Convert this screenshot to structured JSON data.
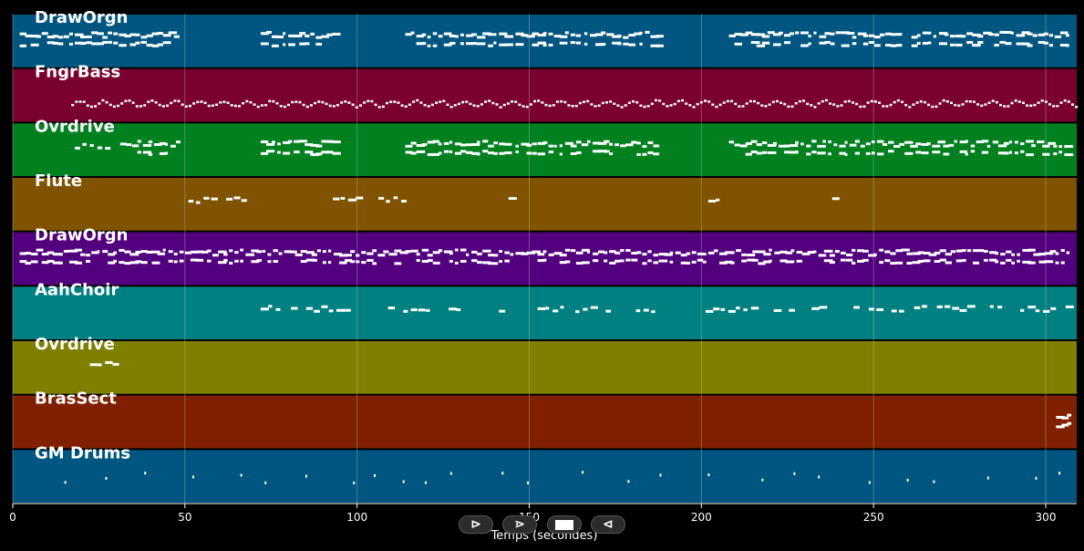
{
  "chart_data": {
    "type": "piano-roll",
    "xlabel": "Temps (secondes)",
    "xlim": [
      0,
      309
    ],
    "x_ticks": [
      0,
      50,
      100,
      150,
      200,
      250,
      300
    ],
    "grid": true,
    "tracks": [
      {
        "name": "DrawOrgn",
        "color": "#005680",
        "segments": [
          [
            2,
            47,
            "dense"
          ],
          [
            72,
            93,
            "dense"
          ],
          [
            114,
            143,
            "dense"
          ],
          [
            146,
            164,
            "dense"
          ],
          [
            166,
            187,
            "dense"
          ],
          [
            208,
            230,
            "dense"
          ],
          [
            231,
            258,
            "dense"
          ],
          [
            261,
            307,
            "dense"
          ]
        ]
      },
      {
        "name": "FngrBass",
        "color": "#7a0030",
        "segments": [
          [
            17,
            309,
            "line"
          ]
        ]
      },
      {
        "name": "Ovrdrive",
        "color": "#00801f",
        "segments": [
          [
            18,
            33,
            "sparse"
          ],
          [
            33,
            49,
            "dense"
          ],
          [
            72,
            93,
            "dense"
          ],
          [
            114,
            143,
            "dense"
          ],
          [
            146,
            187,
            "dense"
          ],
          [
            208,
            243,
            "dense"
          ],
          [
            243,
            307,
            "dense"
          ]
        ]
      },
      {
        "name": "Flute",
        "color": "#805300",
        "segments": [
          [
            51,
            70,
            "sparse"
          ],
          [
            93,
            114,
            "sparse"
          ],
          [
            144,
            146,
            "sparse"
          ],
          [
            193,
            195,
            "sparse"
          ],
          [
            202,
            205,
            "sparse"
          ],
          [
            238,
            241,
            "sparse"
          ]
        ]
      },
      {
        "name": "DrawOrgn",
        "color": "#53007f",
        "segments": [
          [
            2,
            307,
            "dense"
          ]
        ]
      },
      {
        "name": "AahChoir",
        "color": "#008080",
        "segments": [
          [
            72,
            98,
            "sparse"
          ],
          [
            109,
            135,
            "sparse"
          ],
          [
            139,
            142,
            "sparse"
          ],
          [
            148,
            187,
            "sparse"
          ],
          [
            199,
            227,
            "sparse"
          ],
          [
            232,
            235,
            "sparse"
          ],
          [
            242,
            307,
            "sparse"
          ]
        ]
      },
      {
        "name": "Ovrdrive",
        "color": "#808000",
        "segments": [
          [
            18,
            31,
            "sparse"
          ]
        ]
      },
      {
        "name": "BrasSect",
        "color": "#802000",
        "segments": [
          [
            303,
            307,
            "dense"
          ]
        ]
      },
      {
        "name": "GM Drums",
        "color": "#005680",
        "segments": [
          [
            15,
            305,
            "hits"
          ]
        ]
      }
    ]
  },
  "controls": {
    "play_label": "⊳",
    "next_label": "⋗",
    "prev_label": "⊲"
  },
  "colors": {
    "background": "#000000",
    "grid": "#cccccc",
    "notes": "#ffffff"
  }
}
